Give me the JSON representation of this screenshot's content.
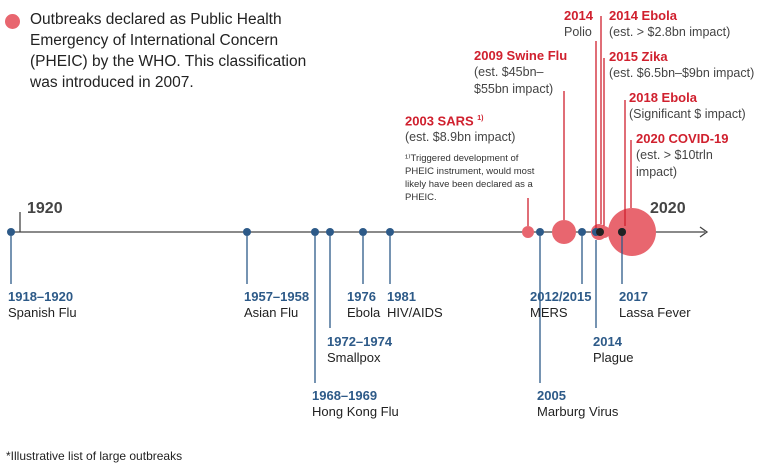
{
  "legend": {
    "text": "Outbreaks declared as Public Health Emergency of International Concern (PHEIC) by the WHO. This classification was introduced in 2007.",
    "color": "#e8666f"
  },
  "axis": {
    "start_label": "1920",
    "end_label": "2020",
    "color": "#444444"
  },
  "colors": {
    "blue": "#2d5a88",
    "red": "#d0202e",
    "pheic": "#e8666f",
    "dark": "#222222"
  },
  "below_events": [
    {
      "id": "spanish-flu",
      "years": "1918–1920",
      "name": "Spanish Flu"
    },
    {
      "id": "asian-flu",
      "years": "1957–1958",
      "name": "Asian Flu"
    },
    {
      "id": "hong-kong-flu",
      "years": "1968–1969",
      "name": "Hong Kong Flu"
    },
    {
      "id": "smallpox",
      "years": "1972–1974",
      "name": "Smallpox"
    },
    {
      "id": "ebola-1976",
      "years": "1976",
      "name": "Ebola"
    },
    {
      "id": "hiv-aids",
      "years": "1981",
      "name": "HIV/AIDS"
    },
    {
      "id": "mers",
      "years": "2012/2015",
      "name": "MERS"
    },
    {
      "id": "marburg",
      "years": "2005",
      "name": "Marburg Virus"
    },
    {
      "id": "plague",
      "years": "2014",
      "name": "Plague"
    },
    {
      "id": "lassa",
      "years": "2017",
      "name": "Lassa Fever"
    }
  ],
  "above_events": [
    {
      "id": "sars",
      "title": "2003 SARS",
      "sup": "1)",
      "impact": "(est. $8.9bn impact)",
      "note": "¹⁾Triggered development of PHEIC instrument, would most likely have been declared as a PHEIC."
    },
    {
      "id": "swine-flu",
      "title": "2009 Swine Flu",
      "impact": "(est. $45bn–$55bn impact)"
    },
    {
      "id": "polio",
      "title": "2014",
      "impact": "Polio"
    },
    {
      "id": "ebola-2014",
      "title": "2014 Ebola",
      "impact": "(est. > $2.8bn impact)"
    },
    {
      "id": "zika",
      "title": "2015 Zika",
      "impact": "(est. $6.5bn–$9bn impact)"
    },
    {
      "id": "ebola-2018",
      "title": "2018 Ebola",
      "impact": "(Significant $ impact)"
    },
    {
      "id": "covid",
      "title": "2020 COVID-19",
      "impact": "(est. > $10trln impact)"
    }
  ],
  "footnote": "*Illustrative list of large outbreaks"
}
